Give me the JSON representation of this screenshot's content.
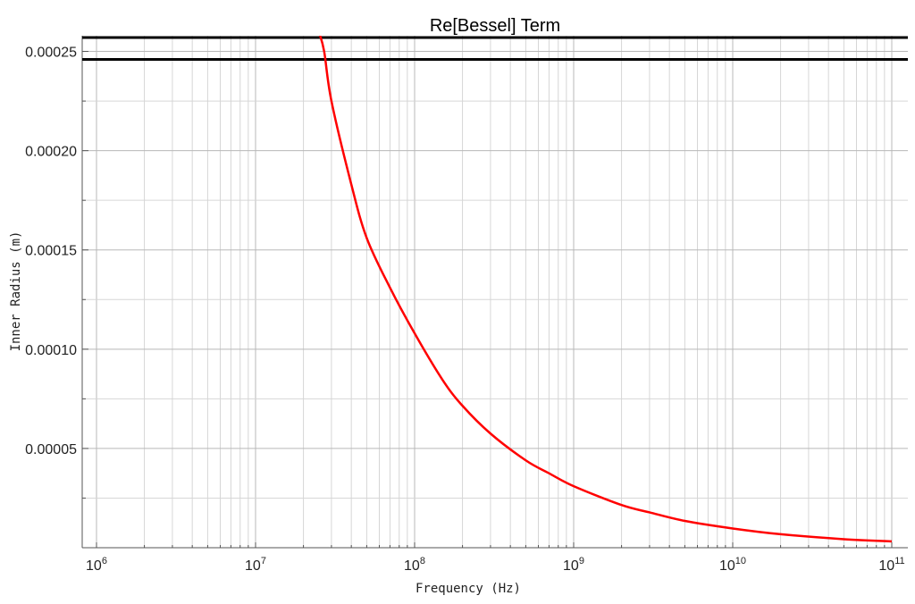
{
  "chart_data": {
    "type": "line",
    "title": "Re[Bessel] Term",
    "xlabel": "Frequency (Hz)",
    "ylabel": "Inner Radius (m)",
    "x_scale": "log",
    "xlim": [
      1000000,
      100000000000
    ],
    "ylim": [
      0,
      0.000257
    ],
    "x_ticks": [
      {
        "base": "10",
        "exp": "6",
        "value": 1000000
      },
      {
        "base": "10",
        "exp": "7",
        "value": 10000000
      },
      {
        "base": "10",
        "exp": "8",
        "value": 100000000
      },
      {
        "base": "10",
        "exp": "9",
        "value": 1000000000
      },
      {
        "base": "10",
        "exp": "10",
        "value": 10000000000
      },
      {
        "base": "10",
        "exp": "11",
        "value": 100000000000
      }
    ],
    "y_ticks": [
      {
        "label": "0.00005",
        "value": 5e-05
      },
      {
        "label": "0.00010",
        "value": 0.0001
      },
      {
        "label": "0.00015",
        "value": 0.00015
      },
      {
        "label": "0.00020",
        "value": 0.0002
      },
      {
        "label": "0.00025",
        "value": 0.00025
      }
    ],
    "grid": true,
    "series": [
      {
        "color": "#ff0000",
        "x": [
          25000000,
          27000000,
          30000000,
          40000000,
          50000000,
          70000000,
          100000000,
          150000000,
          200000000,
          300000000,
          500000000,
          700000000,
          1000000000,
          2000000000,
          3000000000,
          5000000000,
          10000000000,
          20000000000,
          50000000000,
          100000000000
        ],
        "y": [
          0.00026,
          0.00025,
          0.000225,
          0.000183,
          0.000156,
          0.000131,
          0.000108,
          8.45e-05,
          7.15e-05,
          5.75e-05,
          4.4e-05,
          3.75e-05,
          3.1e-05,
          2.15e-05,
          1.78e-05,
          1.35e-05,
          9.7e-06,
          6.8e-06,
          4.3e-06,
          3.2e-06
        ]
      }
    ],
    "hlines": [
      {
        "y": 0.000257,
        "color": "#000000"
      },
      {
        "y": 0.000246,
        "color": "#000000"
      }
    ]
  }
}
